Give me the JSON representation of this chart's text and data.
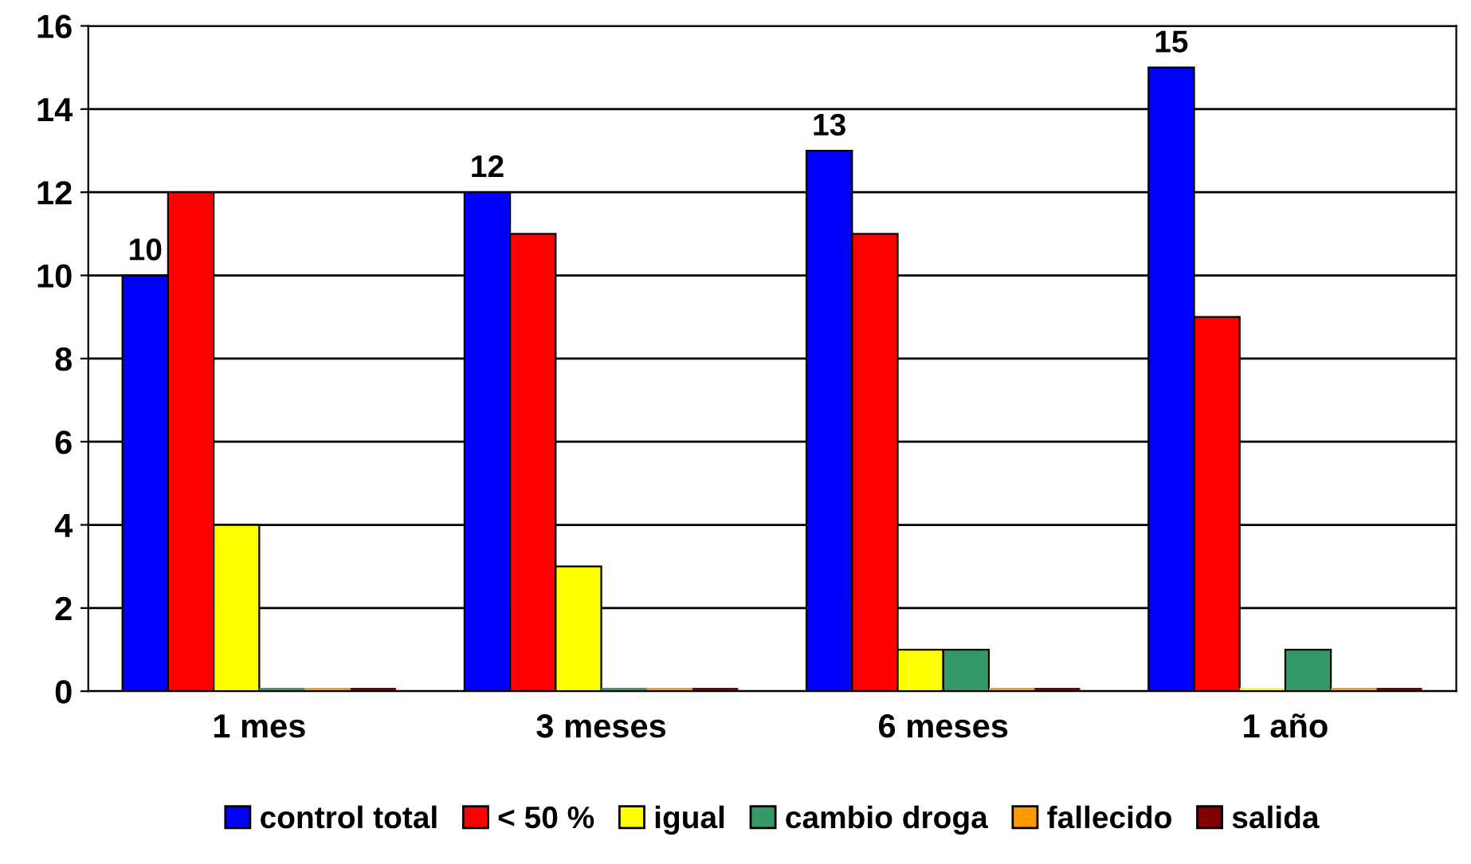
{
  "chart_data": {
    "type": "bar",
    "categories": [
      "1 mes",
      "3 meses",
      "6 meses",
      "1 año"
    ],
    "series": [
      {
        "name": "control total",
        "color": "#0000ff",
        "values": [
          10,
          12,
          13,
          15
        ],
        "value_labels": [
          "10",
          "12",
          "13",
          "15"
        ]
      },
      {
        "name": "< 50 %",
        "color": "#ff0000",
        "values": [
          12,
          11,
          11,
          9
        ]
      },
      {
        "name": "igual",
        "color": "#ffff00",
        "values": [
          4,
          3,
          1,
          0
        ]
      },
      {
        "name": "cambio droga",
        "color": "#339966",
        "values": [
          0,
          0,
          1,
          1
        ]
      },
      {
        "name": "fallecido",
        "color": "#ff9900",
        "values": [
          0,
          0,
          0,
          0
        ]
      },
      {
        "name": "salida",
        "color": "#800000",
        "values": [
          0,
          0,
          0,
          0
        ]
      }
    ],
    "ylim": [
      0,
      16
    ],
    "yticks": [
      0,
      2,
      4,
      6,
      8,
      10,
      12,
      14,
      16
    ],
    "grid": "y",
    "legend": "bottom"
  }
}
